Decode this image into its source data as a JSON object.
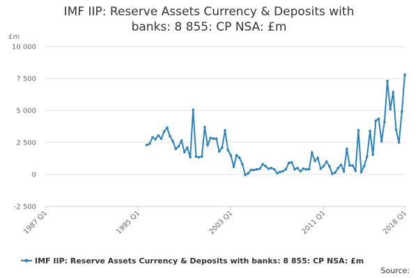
{
  "chart_data": {
    "type": "line",
    "title": "IMF IIP: Reserve Assets Currency & Deposits with banks: 8 855: CP NSA: £m",
    "y_label": "£m",
    "source": "Source:",
    "x": [
      "1995 Q4",
      "1996 Q1",
      "1996 Q2",
      "1996 Q3",
      "1996 Q4",
      "1997 Q1",
      "1997 Q2",
      "1997 Q3",
      "1997 Q4",
      "1998 Q1",
      "1998 Q2",
      "1998 Q3",
      "1998 Q4",
      "1999 Q1",
      "1999 Q2",
      "1999 Q3",
      "1999 Q4",
      "2000 Q1",
      "2000 Q2",
      "2000 Q3",
      "2000 Q4",
      "2001 Q1",
      "2001 Q2",
      "2001 Q3",
      "2001 Q4",
      "2002 Q1",
      "2002 Q2",
      "2002 Q3",
      "2002 Q4",
      "2003 Q1",
      "2003 Q2",
      "2003 Q3",
      "2003 Q4",
      "2004 Q1",
      "2004 Q2",
      "2004 Q3",
      "2004 Q4",
      "2005 Q1",
      "2005 Q2",
      "2005 Q3",
      "2005 Q4",
      "2006 Q1",
      "2006 Q2",
      "2006 Q3",
      "2006 Q4",
      "2007 Q1",
      "2007 Q2",
      "2007 Q3",
      "2007 Q4",
      "2008 Q1",
      "2008 Q2",
      "2008 Q3",
      "2008 Q4",
      "2009 Q1",
      "2009 Q2",
      "2009 Q3",
      "2009 Q4",
      "2010 Q1",
      "2010 Q2",
      "2010 Q3",
      "2010 Q4",
      "2011 Q1",
      "2011 Q2",
      "2011 Q3",
      "2011 Q4",
      "2012 Q1",
      "2012 Q2",
      "2012 Q3",
      "2012 Q4",
      "2013 Q1",
      "2013 Q2",
      "2013 Q3",
      "2013 Q4",
      "2014 Q1",
      "2014 Q2",
      "2014 Q3",
      "2014 Q4",
      "2015 Q1",
      "2015 Q2",
      "2015 Q3",
      "2015 Q4",
      "2016 Q1",
      "2016 Q2",
      "2016 Q3",
      "2016 Q4",
      "2017 Q1",
      "2017 Q2",
      "2017 Q3",
      "2017 Q4",
      "2018 Q1"
    ],
    "series": [
      {
        "name": "IMF IIP: Reserve Assets Currency & Deposits with banks: 8 855: CP NSA: £m",
        "color": "#2b80b9",
        "values": [
          2300,
          2400,
          2900,
          2750,
          3050,
          2800,
          3350,
          3650,
          3000,
          2600,
          2000,
          2200,
          2650,
          1750,
          2100,
          1350,
          5050,
          1400,
          1350,
          1400,
          3700,
          2300,
          2850,
          2800,
          2800,
          1800,
          2100,
          3450,
          1900,
          1500,
          600,
          1500,
          1300,
          800,
          -50,
          100,
          350,
          350,
          400,
          450,
          800,
          650,
          450,
          500,
          400,
          100,
          200,
          250,
          400,
          900,
          950,
          400,
          500,
          250,
          450,
          400,
          400,
          1700,
          1050,
          1300,
          450,
          650,
          1000,
          650,
          50,
          150,
          500,
          750,
          250,
          2000,
          700,
          700,
          300,
          3450,
          200,
          650,
          1400,
          3400,
          1550,
          4200,
          4350,
          2600,
          4100,
          7300,
          5100,
          6450,
          3500,
          2500,
          4900,
          7800
        ]
      }
    ],
    "xlim": [
      "1987 Q1",
      "2018 Q1"
    ],
    "xticks": [
      "1987 Q1",
      "1995 Q1",
      "2003 Q1",
      "2011 Q1",
      "2018 Q1"
    ],
    "ylim": [
      -2500,
      10000
    ],
    "yticks": [
      {
        "value": -2500,
        "label": "-2 500"
      },
      0,
      {
        "value": 2500,
        "label": "2 500"
      },
      {
        "value": 5000,
        "label": "5 000"
      },
      {
        "value": 7500,
        "label": "7 500"
      },
      {
        "value": 10000,
        "label": "10 000"
      }
    ],
    "grid": true,
    "legend": "bottom"
  }
}
